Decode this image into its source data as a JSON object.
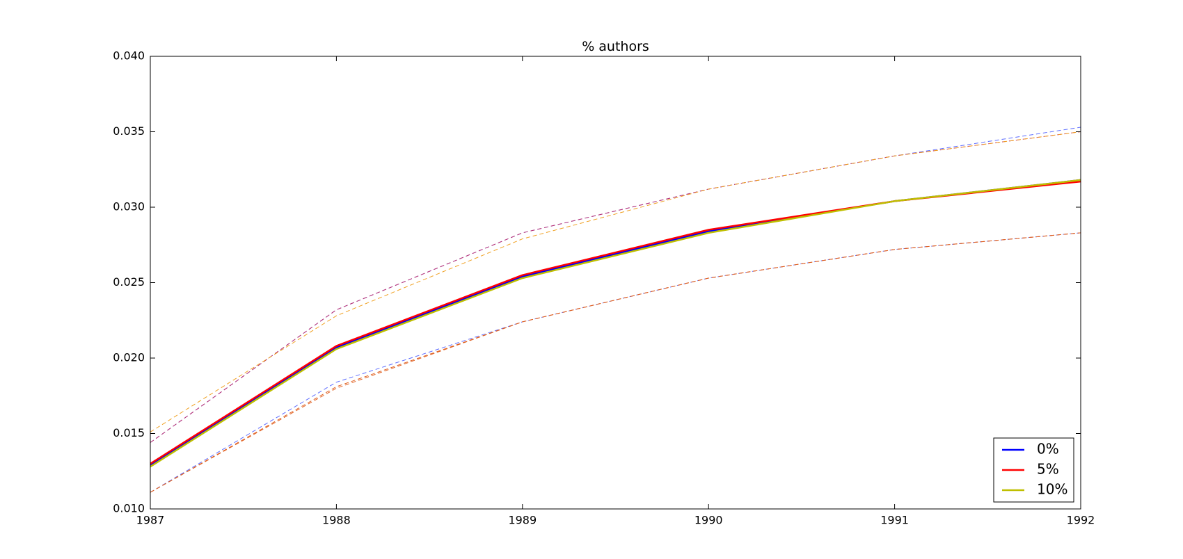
{
  "chart_data": {
    "type": "line",
    "title": "% authors",
    "xlabel": "",
    "ylabel": "",
    "x": [
      1987,
      1988,
      1989,
      1990,
      1991,
      1992
    ],
    "xlim": [
      1987,
      1992
    ],
    "ylim": [
      0.01,
      0.04
    ],
    "x_ticks": [
      "1987",
      "1988",
      "1989",
      "1990",
      "1991",
      "1992"
    ],
    "y_ticks": [
      "0.010",
      "0.015",
      "0.020",
      "0.025",
      "0.030",
      "0.035",
      "0.040"
    ],
    "grid": false,
    "legend_position": "bottom-right",
    "series": [
      {
        "name": "0%",
        "color": "#0000ff",
        "values": [
          0.0129,
          0.0207,
          0.0254,
          0.0284,
          0.0304,
          0.0318
        ],
        "upper": [
          0.0144,
          0.0232,
          0.0283,
          0.0312,
          0.0334,
          0.0353
        ],
        "lower": [
          0.0111,
          0.0184,
          0.0224,
          0.0253,
          0.0272,
          0.0283
        ]
      },
      {
        "name": "5%",
        "color": "#ff0000",
        "values": [
          0.013,
          0.0208,
          0.0255,
          0.0285,
          0.0304,
          0.0317
        ],
        "upper": [
          0.0144,
          0.0232,
          0.0283,
          0.0312,
          0.0334,
          0.035
        ],
        "lower": [
          0.0111,
          0.0181,
          0.0224,
          0.0253,
          0.0272,
          0.0283
        ]
      },
      {
        "name": "10%",
        "color": "#bfbf00",
        "values": [
          0.0128,
          0.0206,
          0.0253,
          0.0283,
          0.0304,
          0.0318
        ],
        "upper": [
          0.0151,
          0.0228,
          0.0279,
          0.0312,
          0.0334,
          0.035
        ],
        "lower": [
          0.0111,
          0.018,
          0.0224,
          0.0253,
          0.0272,
          0.0283
        ]
      }
    ]
  },
  "colors": {
    "band_0": "#5c6cff",
    "band_5": "#c0306c",
    "band_10": "#f0a020",
    "band_lower": "#e06020"
  }
}
